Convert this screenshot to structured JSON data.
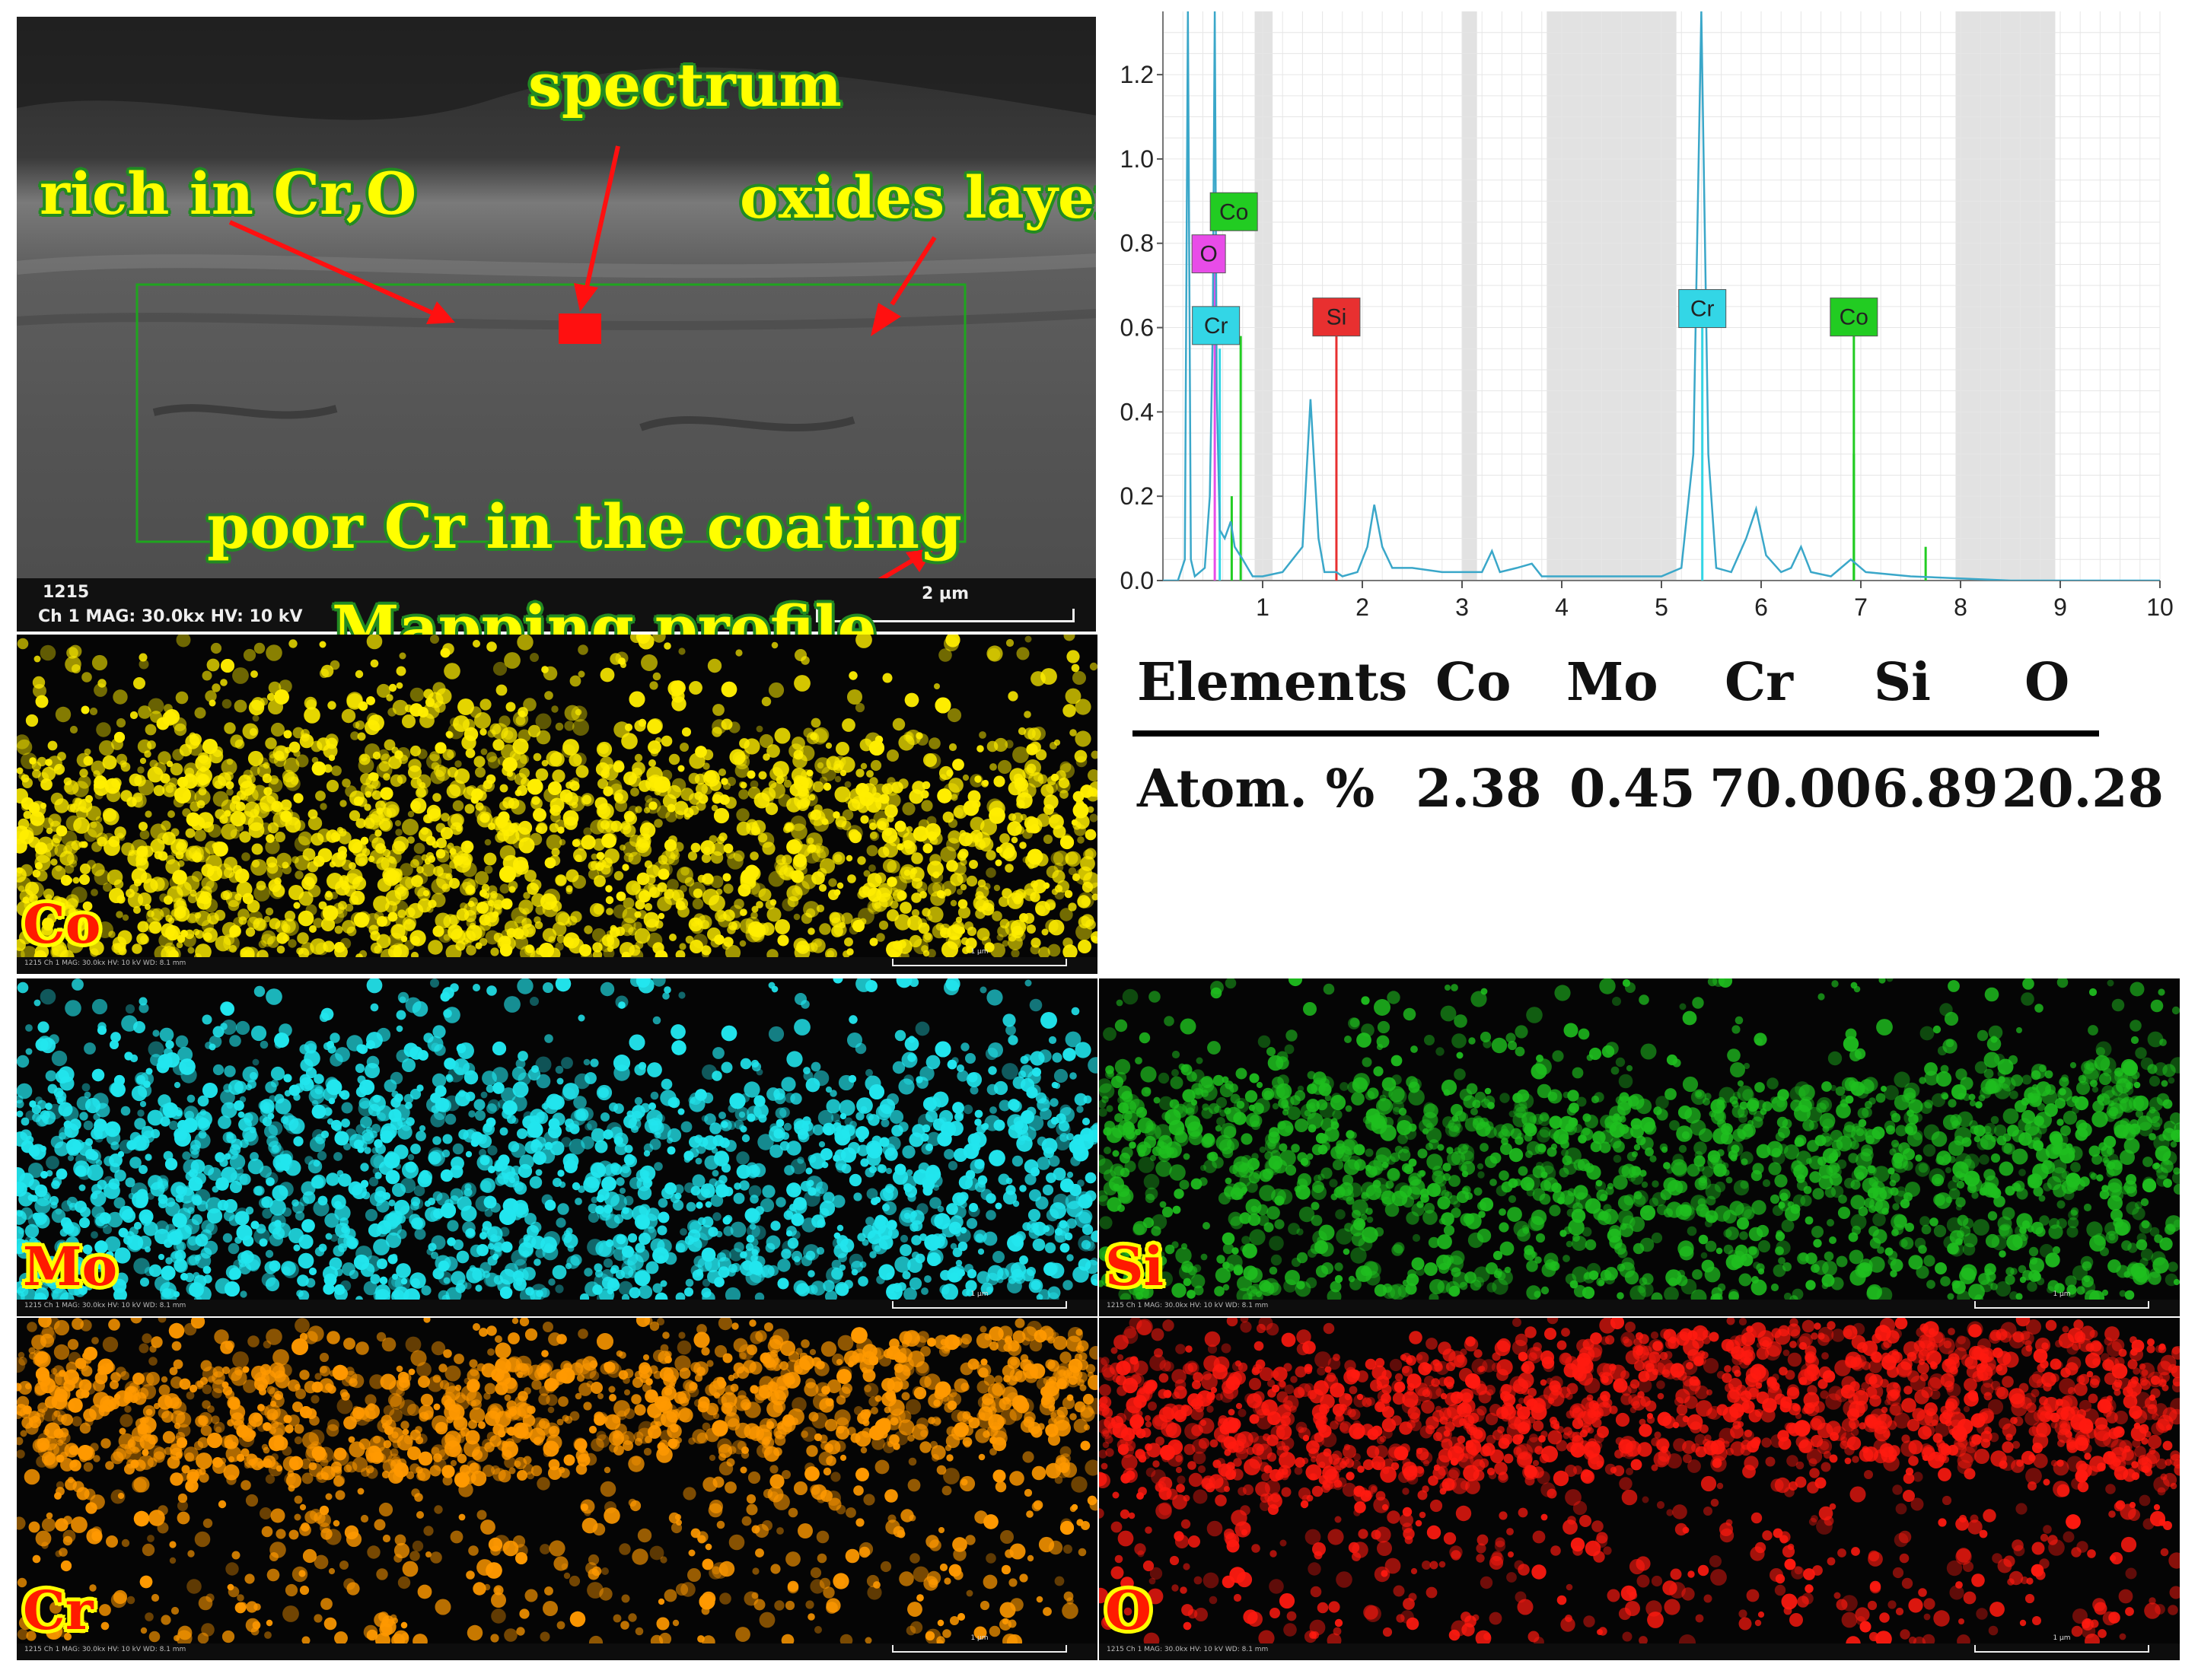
{
  "sem": {
    "annotations": {
      "spectrum": "spectrum",
      "rich": "rich in Cr,O",
      "oxides": "oxides layer",
      "poor": "poor Cr in the coating",
      "mapping": "Mapping profile"
    },
    "info_line1": "1215",
    "info_line2": "Ch 1    MAG: 30.0kx    HV: 10 kV",
    "scale_label": "2 µm"
  },
  "maps": [
    {
      "element": "Co",
      "color": "#ffee00",
      "scale_label": "1 µm",
      "info": "1215  Ch 1  MAG: 30.0kx  HV: 10 kV  WD: 8.1 mm"
    },
    {
      "element": "Mo",
      "color": "#22e6ee",
      "scale_label": "1 µm",
      "info": "1215  Ch 1  MAG: 30.0kx  HV: 10 kV  WD: 8.1 mm"
    },
    {
      "element": "Si",
      "color": "#1fbf1f",
      "scale_label": "1 µm",
      "info": "1215  Ch 1  MAG: 30.0kx  HV: 10 kV  WD: 8.1 mm"
    },
    {
      "element": "Cr",
      "color": "#ff9900",
      "scale_label": "1 µm",
      "info": "1215  Ch 1  MAG: 30.0kx  HV: 10 kV  WD: 8.1 mm"
    },
    {
      "element": "O",
      "color": "#ff1a10",
      "scale_label": "1 µm",
      "info": "1215  Ch 1  MAG: 30.0kx  HV: 10 kV  WD: 8.1 mm"
    }
  ],
  "table": {
    "headers": [
      "Elements",
      "Co",
      "Mo",
      "Cr",
      "Si",
      "O"
    ],
    "row": [
      "Atom. %",
      "2.38",
      "0.45",
      "70.00",
      "6.89",
      "20.28"
    ]
  },
  "chart_data": {
    "type": "line",
    "title": "",
    "xlabel": "",
    "ylabel": "",
    "xlim": [
      0,
      10
    ],
    "ylim": [
      0,
      1.35
    ],
    "xticks": [
      "1",
      "2",
      "3",
      "4",
      "5",
      "6",
      "7",
      "8",
      "9",
      "10"
    ],
    "yticks": [
      "0.0",
      "0.2",
      "0.4",
      "0.6",
      "0.8",
      "1.0",
      "1.2"
    ],
    "shaded_bands": [
      [
        0.92,
        1.1
      ],
      [
        3.0,
        3.15
      ],
      [
        3.85,
        5.15
      ],
      [
        7.95,
        8.95
      ]
    ],
    "spectrum": [
      [
        0.0,
        0.0
      ],
      [
        0.15,
        0.0
      ],
      [
        0.22,
        0.05
      ],
      [
        0.25,
        1.35
      ],
      [
        0.28,
        0.05
      ],
      [
        0.32,
        0.01
      ],
      [
        0.42,
        0.03
      ],
      [
        0.47,
        0.2
      ],
      [
        0.5,
        0.6
      ],
      [
        0.52,
        1.35
      ],
      [
        0.54,
        0.45
      ],
      [
        0.57,
        0.12
      ],
      [
        0.62,
        0.1
      ],
      [
        0.68,
        0.14
      ],
      [
        0.72,
        0.08
      ],
      [
        0.8,
        0.05
      ],
      [
        0.85,
        0.03
      ],
      [
        0.9,
        0.01
      ],
      [
        1.0,
        0.01
      ],
      [
        1.2,
        0.02
      ],
      [
        1.4,
        0.08
      ],
      [
        1.48,
        0.43
      ],
      [
        1.56,
        0.1
      ],
      [
        1.62,
        0.02
      ],
      [
        1.74,
        0.02
      ],
      [
        1.8,
        0.01
      ],
      [
        1.95,
        0.02
      ],
      [
        2.05,
        0.08
      ],
      [
        2.12,
        0.18
      ],
      [
        2.2,
        0.08
      ],
      [
        2.3,
        0.03
      ],
      [
        2.5,
        0.03
      ],
      [
        2.8,
        0.02
      ],
      [
        3.2,
        0.02
      ],
      [
        3.3,
        0.07
      ],
      [
        3.38,
        0.02
      ],
      [
        3.55,
        0.03
      ],
      [
        3.7,
        0.04
      ],
      [
        3.8,
        0.01
      ],
      [
        4.3,
        0.01
      ],
      [
        5.0,
        0.01
      ],
      [
        5.2,
        0.03
      ],
      [
        5.32,
        0.3
      ],
      [
        5.4,
        1.35
      ],
      [
        5.47,
        0.3
      ],
      [
        5.55,
        0.03
      ],
      [
        5.7,
        0.02
      ],
      [
        5.85,
        0.1
      ],
      [
        5.95,
        0.17
      ],
      [
        6.05,
        0.06
      ],
      [
        6.2,
        0.02
      ],
      [
        6.3,
        0.03
      ],
      [
        6.4,
        0.08
      ],
      [
        6.5,
        0.02
      ],
      [
        6.7,
        0.01
      ],
      [
        6.9,
        0.05
      ],
      [
        7.05,
        0.02
      ],
      [
        7.5,
        0.01
      ],
      [
        8.5,
        0.0
      ],
      [
        10.0,
        0.0
      ]
    ],
    "markers": [
      {
        "element": "O",
        "x": 0.52,
        "height": 0.75,
        "color": "#e84ce8"
      },
      {
        "element": "Co",
        "x": 0.78,
        "height": 0.58,
        "color": "#22cc22"
      },
      {
        "element": "Cr",
        "x": 0.57,
        "height": 0.55,
        "color": "#33d6e6"
      },
      {
        "element": "Si",
        "x": 1.74,
        "height": 0.58,
        "color": "#e83030"
      },
      {
        "element": "Cr",
        "x": 5.41,
        "height": 0.6,
        "color": "#33d6e6"
      },
      {
        "element": "Co",
        "x": 6.93,
        "height": 0.58,
        "color": "#22cc22"
      }
    ],
    "minor_peaks": [
      {
        "x": 0.69,
        "y": 0.2,
        "color": "#22cc22"
      },
      {
        "x": 7.65,
        "y": 0.08,
        "color": "#22cc22"
      },
      {
        "x": 6.93,
        "y": 0.3,
        "color": "#22cc22"
      }
    ]
  }
}
